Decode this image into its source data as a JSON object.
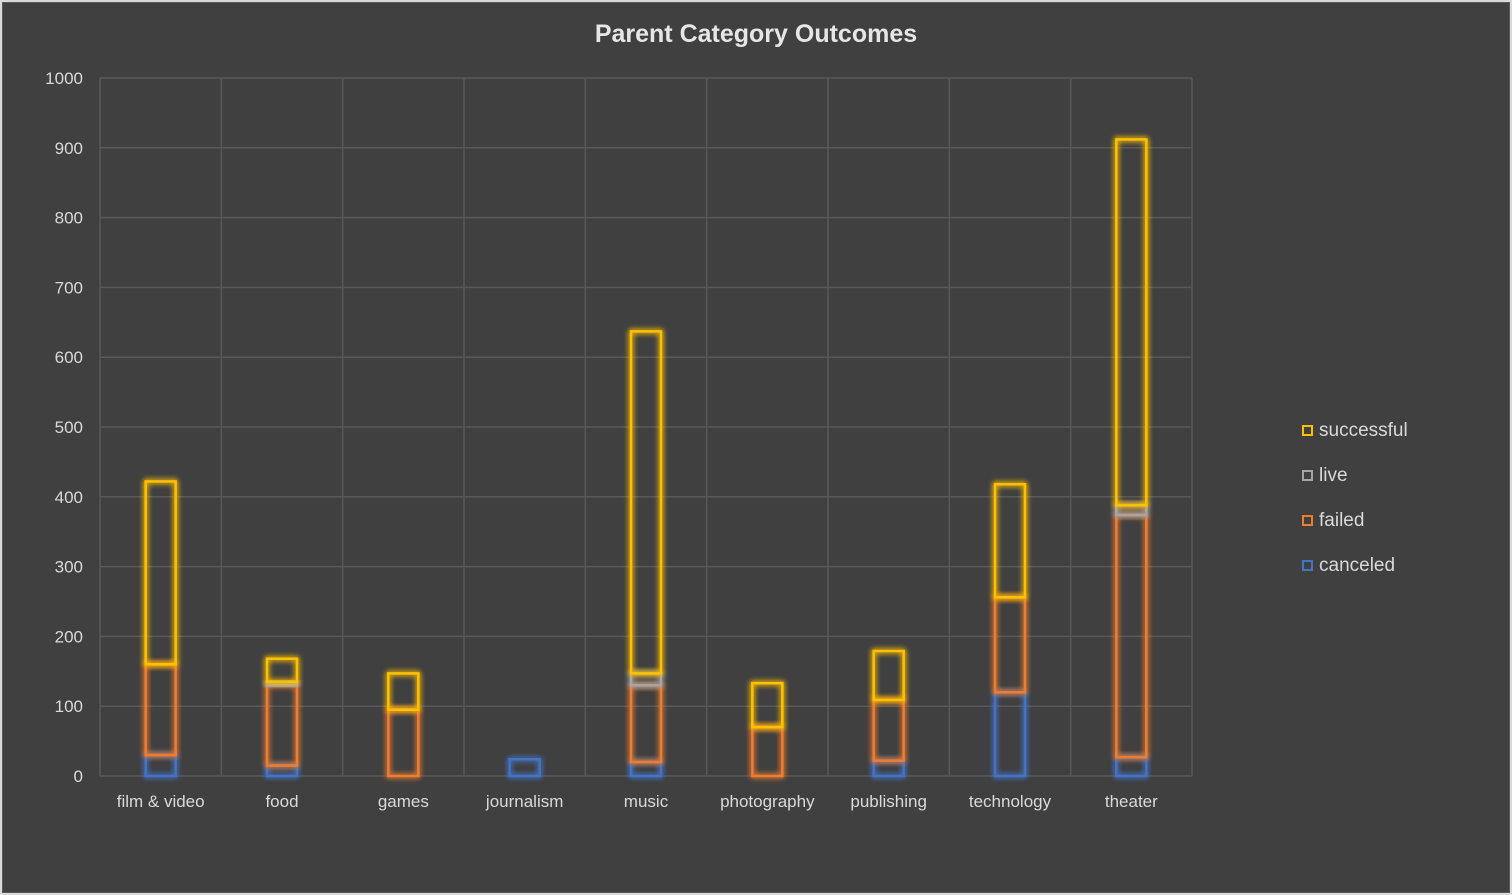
{
  "chart_data": {
    "type": "bar",
    "stacked": true,
    "title": "Parent Category Outcomes",
    "xlabel": "",
    "ylabel": "",
    "ylim": [
      0,
      1000
    ],
    "yticks": [
      0,
      100,
      200,
      300,
      400,
      500,
      600,
      700,
      800,
      900,
      1000
    ],
    "grid": true,
    "legend_position": "right",
    "categories": [
      "film & video",
      "food",
      "games",
      "journalism",
      "music",
      "photography",
      "publishing",
      "technology",
      "theater"
    ],
    "series": [
      {
        "name": "canceled",
        "color": "#4472c4",
        "values": [
          30,
          15,
          0,
          24,
          20,
          0,
          22,
          120,
          27
        ]
      },
      {
        "name": "failed",
        "color": "#ed7d31",
        "values": [
          130,
          115,
          95,
          0,
          110,
          70,
          87,
          136,
          347
        ]
      },
      {
        "name": "live",
        "color": "#a5a5a5",
        "values": [
          0,
          5,
          0,
          0,
          17,
          0,
          0,
          0,
          14
        ]
      },
      {
        "name": "successful",
        "color": "#ffc000",
        "values": [
          262,
          33,
          52,
          0,
          490,
          63,
          70,
          162,
          524
        ]
      }
    ],
    "legend_order": [
      "successful",
      "live",
      "failed",
      "canceled"
    ]
  }
}
